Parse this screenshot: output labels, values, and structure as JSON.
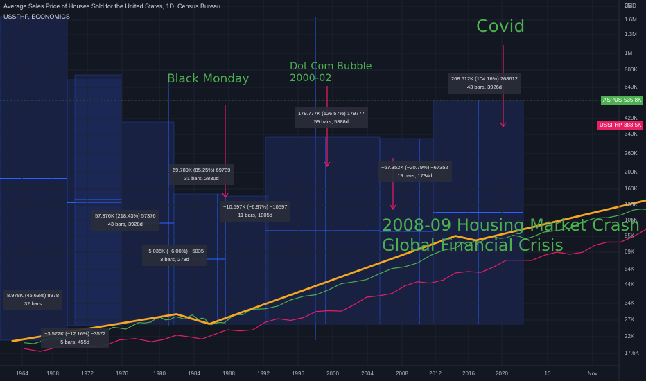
{
  "header": {
    "title": "Average Sales Price of Houses Sold for the United States, 1D, Census Bureau",
    "subtitle": "USSFHP, ECONOMICS"
  },
  "annotations": {
    "black_monday": "Black Monday",
    "dotcom_line1": "Dot Com Bubble",
    "dotcom_line2": "2000-02",
    "covid": "Covid",
    "crash_line1": "2008-09 Housing Market Crash",
    "crash_line2": "Global Financial Crisis"
  },
  "measures": [
    {
      "line1": "8.978K (45.63%) 8978",
      "line2": "32 bars"
    },
    {
      "line1": "−3.572K (−12.16%) −3572",
      "line2": "5 bars, 455d"
    },
    {
      "line1": "57.376K (218.43%) 57376",
      "line2": "43 bars, 3928d"
    },
    {
      "line1": "−5.035K (−6.00%) −5035",
      "line2": "3 bars, 273d"
    },
    {
      "line1": "69.789K (85.25%) 69789",
      "line2": "31 bars, 2830d"
    },
    {
      "line1": "−10.597K (−6.97%) −10597",
      "line2": "11 bars, 1005d"
    },
    {
      "line1": "179.777K (126.57%) 179777",
      "line2": "59 bars, 5388d"
    },
    {
      "line1": "−67.352K (−20.79%) −67352",
      "line2": "19 bars, 1734d"
    },
    {
      "line1": "268.612K (104.16%) 268612",
      "line2": "43 bars, 3926d"
    }
  ],
  "y_axis": {
    "currency": "USD",
    "ticks": [
      "2M",
      "1.6M",
      "1.3M",
      "1M",
      "800K",
      "640K",
      "520K",
      "420K",
      "340K",
      "260K",
      "200K",
      "160K",
      "130K",
      "105K",
      "85K",
      "69K",
      "54K",
      "44K",
      "34K",
      "27K",
      "22K",
      "17.6K"
    ]
  },
  "x_axis": {
    "ticks": [
      "1964",
      "1968",
      "1972",
      "1976",
      "1980",
      "1984",
      "1988",
      "1992",
      "1996",
      "2000",
      "2004",
      "2008",
      "2012",
      "2016",
      "2020",
      "10",
      "Nov"
    ]
  },
  "badges": {
    "aspus_name": "ASPUS",
    "aspus_value": "535.8K",
    "aspus_color": "#4caf50",
    "ussfhp_name": "USSFHP",
    "ussfhp_value": "383.5K",
    "ussfhp_color": "#e91e63"
  },
  "colors": {
    "background": "#131722",
    "trend": "#f5a623",
    "aspus": "#4caf50",
    "ussfhp": "#e91e63",
    "box_fill": "#1e2f6b",
    "arrow": "#2962ff",
    "annotation": "#4caf50",
    "event_line": "#e91e63"
  },
  "chart_data": {
    "type": "line",
    "y_scale": "log",
    "ylim": [
      16000,
      2100000
    ],
    "series": [
      {
        "name": "ASPUS",
        "x": [
          1963,
          1966,
          1968,
          1969.5,
          1970.5,
          1972,
          1976,
          1980,
          1981,
          1983,
          1987,
          1989.5,
          1992,
          1995,
          2000,
          2004,
          2007,
          2009,
          2012,
          2016,
          2020,
          2022.5
        ],
        "values": [
          19300,
          22500,
          26000,
          28000,
          25000,
          30000,
          44000,
          72000,
          80000,
          84000,
          118000,
          149000,
          141000,
          155000,
          203000,
          260000,
          320000,
          272000,
          245000,
          340000,
          390000,
          535800
        ]
      },
      {
        "name": "USSFHP",
        "x": [
          1963,
          1968,
          1972,
          1976,
          1980,
          1984,
          1988,
          1992,
          1996,
          2000,
          2004,
          2007,
          2010,
          2014,
          2018,
          2021.5,
          2022.5
        ],
        "values": [
          17800,
          19800,
          23500,
          33000,
          50000,
          65000,
          90000,
          105000,
          124000,
          150000,
          210000,
          246000,
          175000,
          220000,
          260000,
          330000,
          383500
        ]
      }
    ],
    "trend_line": {
      "x": [
        1962.5,
        1969,
        1970.3,
        1980,
        1980.8,
        1988.5,
        1991.8,
        2007,
        2011.8,
        2022.5
      ],
      "values": [
        19700,
        28600,
        25000,
        84000,
        79000,
        149000,
        138000,
        318000,
        251000,
        520000
      ]
    },
    "events": [
      {
        "label": "Black Monday",
        "x": 1987.8
      },
      {
        "label": "Dot Com Bubble",
        "x": 2000
      },
      {
        "label": "2008-09 Housing Market Crash",
        "x": 2007
      },
      {
        "label": "Covid",
        "x": 2020.2
      }
    ]
  }
}
